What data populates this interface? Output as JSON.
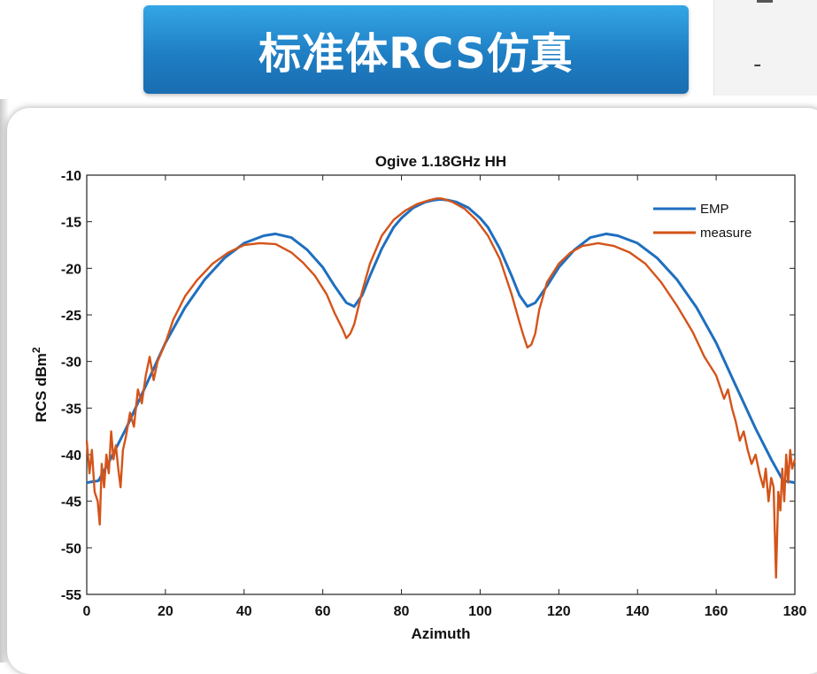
{
  "banner": {
    "title": "标准体RCS仿真"
  },
  "side_fragment": {
    "symbol": "-"
  },
  "colors": {
    "emp": "#1f6fbf",
    "measure": "#d4541a",
    "banner": "#1f7ec4"
  },
  "chart_data": {
    "type": "line",
    "title": "Ogive 1.18GHz HH",
    "xlabel": "Azimuth",
    "ylabel": "RCS dBm",
    "ylabel_sup": "2",
    "xlim": [
      0,
      180
    ],
    "ylim": [
      -55,
      -10
    ],
    "xticks": [
      0,
      20,
      40,
      60,
      80,
      100,
      120,
      140,
      160,
      180
    ],
    "yticks": [
      -10,
      -15,
      -20,
      -25,
      -30,
      -35,
      -40,
      -45,
      -50,
      -55
    ],
    "legend_position": "top-right",
    "grid": false,
    "series": [
      {
        "name": "EMP",
        "color": "#1f6fbf",
        "x": [
          0,
          3,
          6,
          10,
          15,
          20,
          25,
          30,
          35,
          40,
          45,
          48,
          52,
          56,
          60,
          63,
          66,
          68,
          70,
          72,
          75,
          78,
          80,
          83,
          86,
          88,
          90,
          92,
          94,
          97,
          100,
          102,
          105,
          108,
          110,
          112,
          114,
          117,
          120,
          124,
          128,
          132,
          135,
          140,
          145,
          150,
          155,
          160,
          165,
          170,
          174,
          177,
          180
        ],
        "y": [
          -43,
          -42.8,
          -40.5,
          -37.2,
          -32.6,
          -28,
          -24.2,
          -21.2,
          -18.9,
          -17.3,
          -16.5,
          -16.3,
          -16.7,
          -18,
          -19.9,
          -21.9,
          -23.7,
          -24.1,
          -22.9,
          -20.8,
          -17.9,
          -15.6,
          -14.6,
          -13.5,
          -12.9,
          -12.7,
          -12.6,
          -12.7,
          -12.9,
          -13.5,
          -14.6,
          -15.6,
          -17.9,
          -20.8,
          -22.9,
          -24.1,
          -23.7,
          -21.9,
          -19.9,
          -18,
          -16.7,
          -16.3,
          -16.5,
          -17.3,
          -18.9,
          -21.2,
          -24.2,
          -28,
          -32.6,
          -37.2,
          -40.5,
          -42.8,
          -43
        ]
      },
      {
        "name": "measure",
        "color": "#d4541a",
        "x": [
          0,
          0.7,
          1.3,
          2,
          2.8,
          3.3,
          3.8,
          4.4,
          5,
          5.6,
          6.2,
          6.8,
          7.4,
          8,
          8.6,
          9.2,
          10,
          11,
          12,
          13,
          14,
          15,
          16,
          17,
          18,
          20,
          22,
          25,
          28,
          32,
          36,
          40,
          44,
          48,
          52,
          55,
          58,
          61,
          63,
          65,
          66,
          67,
          68,
          70,
          72,
          75,
          78,
          81,
          84,
          87,
          89,
          90,
          91,
          93,
          96,
          99,
          102,
          105,
          108,
          110,
          111,
          112,
          113,
          114,
          115,
          117,
          120,
          123,
          126,
          130,
          134,
          138,
          142,
          146,
          150,
          154,
          157,
          160,
          162,
          163,
          164,
          165,
          166,
          167,
          168,
          169,
          170,
          171,
          172,
          172.6,
          173.3,
          174,
          174.6,
          175.2,
          175.8,
          176.3,
          176.8,
          177.3,
          177.8,
          178.3,
          178.8,
          179.3,
          180
        ],
        "y": [
          -38.5,
          -42,
          -39.5,
          -44,
          -45,
          -47.5,
          -41,
          -43.5,
          -40,
          -42,
          -37.5,
          -40.5,
          -39,
          -41.5,
          -43.5,
          -39.5,
          -38,
          -35.5,
          -37,
          -33,
          -34.5,
          -31.5,
          -29.5,
          -32,
          -30,
          -28,
          -25.5,
          -23,
          -21.3,
          -19.5,
          -18.3,
          -17.5,
          -17.3,
          -17.4,
          -18.3,
          -19.4,
          -20.8,
          -22.8,
          -24.8,
          -26.5,
          -27.5,
          -27,
          -26,
          -22.5,
          -19.5,
          -16.5,
          -14.8,
          -13.8,
          -13.1,
          -12.7,
          -12.5,
          -12.5,
          -12.6,
          -12.9,
          -13.6,
          -14.8,
          -16.5,
          -19,
          -22.8,
          -25.8,
          -27.2,
          -28.5,
          -28.2,
          -27,
          -24.5,
          -21.5,
          -19.5,
          -18.3,
          -17.6,
          -17.3,
          -17.6,
          -18.3,
          -19.5,
          -21.5,
          -24,
          -26.8,
          -29.5,
          -31.5,
          -34,
          -33,
          -35,
          -36.5,
          -38.5,
          -37.5,
          -39.5,
          -41,
          -40,
          -42,
          -43.5,
          -41.5,
          -45,
          -42.5,
          -43.5,
          -53.2,
          -44,
          -46,
          -41.5,
          -45,
          -40,
          -43,
          -39.5,
          -41.5,
          -40.5
        ]
      }
    ]
  }
}
